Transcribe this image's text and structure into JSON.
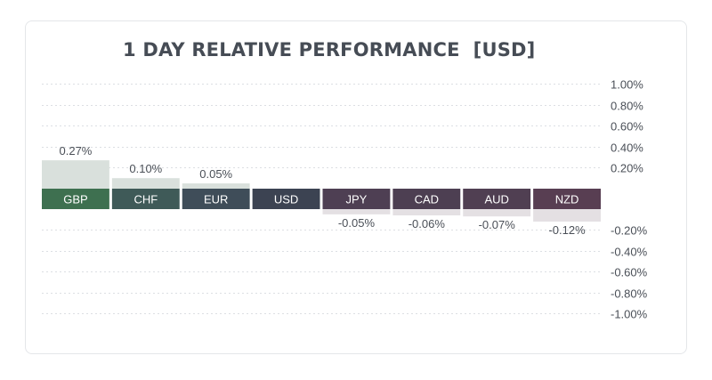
{
  "title": "1 DAY RELATIVE PERFORMANCE  [USD]",
  "chart_data": {
    "type": "bar",
    "title": "1 DAY RELATIVE PERFORMANCE  [USD]",
    "base_currency": "USD",
    "categories": [
      "GBP",
      "CHF",
      "EUR",
      "USD",
      "JPY",
      "CAD",
      "AUD",
      "NZD"
    ],
    "values": [
      0.27,
      0.1,
      0.05,
      0.0,
      -0.05,
      -0.06,
      -0.07,
      -0.12
    ],
    "value_labels": [
      "0.27%",
      "0.10%",
      "0.05%",
      "",
      "-0.05%",
      "-0.06%",
      "-0.07%",
      "-0.12%"
    ],
    "ylim": [
      -1.0,
      1.0
    ],
    "yticks": [
      1.0,
      0.8,
      0.6,
      0.4,
      0.2,
      -0.2,
      -0.4,
      -0.6,
      -0.8,
      -1.0
    ],
    "ytick_labels": [
      "1.00%",
      "0.80%",
      "0.60%",
      "0.40%",
      "0.20%",
      "-0.20%",
      "-0.40%",
      "-0.60%",
      "-0.80%",
      "-1.00%"
    ],
    "grid": true,
    "yaxis_position": "right",
    "colors": {
      "GBP": "#3e7050",
      "CHF": "#3f5a58",
      "EUR": "#3f4d59",
      "USD": "#3c4352",
      "JPY": "#4e3f53",
      "CAD": "#4d3f52",
      "AUD": "#503f52",
      "NZD": "#583e52",
      "positive_bar": "#d9e0dc",
      "negative_bar": "#e4e0e3"
    }
  }
}
